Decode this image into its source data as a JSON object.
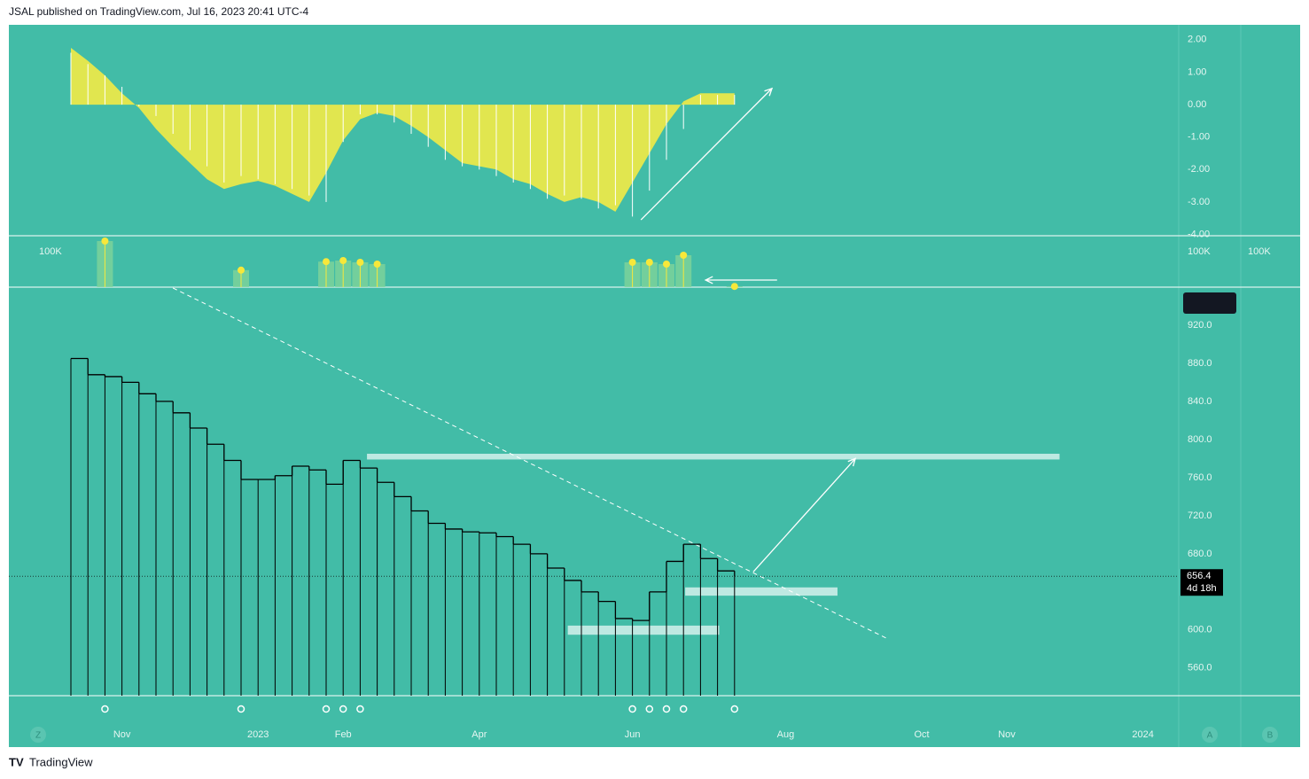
{
  "header": "JSAL published on TradingView.com, Jul 16, 2023 20:41 UTC-4",
  "footer": "TradingView",
  "buttons": [
    "Z",
    "A",
    "B"
  ],
  "chart_data": [
    {
      "type": "area",
      "x": [
        0,
        1,
        2,
        3,
        4,
        5,
        6,
        7,
        8,
        9,
        10,
        11,
        12,
        13,
        14,
        15,
        16,
        17,
        18,
        19,
        20,
        21,
        22,
        23,
        24,
        25,
        26,
        27,
        28,
        29,
        30,
        31,
        32,
        33,
        34,
        35,
        36,
        37,
        38,
        39
      ],
      "series": [
        {
          "color": "#e1e64f",
          "values": [
            1.75,
            1.35,
            0.9,
            0.35,
            -0.1,
            -0.75,
            -1.3,
            -1.8,
            -2.3,
            -2.6,
            -2.45,
            -2.35,
            -2.5,
            -2.75,
            -3.0,
            -2.1,
            -1.1,
            -0.45,
            -0.25,
            -0.35,
            -0.65,
            -1.0,
            -1.4,
            -1.8,
            -1.9,
            -2.0,
            -2.3,
            -2.45,
            -2.75,
            -3.0,
            -2.85,
            -3.0,
            -3.3,
            -2.4,
            -1.5,
            -0.6,
            0.1,
            0.35,
            0.35,
            0.35
          ]
        }
      ],
      "histogram": {
        "color": "#ffffff",
        "values": [
          1.6,
          1.25,
          0.9,
          0.55,
          -0.05,
          -0.35,
          -0.9,
          -1.4,
          -1.9,
          -2.4,
          -2.2,
          -2.3,
          -2.45,
          -2.6,
          -2.8,
          -3.0,
          -1.15,
          -0.3,
          -0.3,
          -0.55,
          -0.9,
          -1.3,
          -1.7,
          -1.9,
          -2.0,
          -2.2,
          -2.4,
          -2.6,
          -2.9,
          -2.8,
          -2.9,
          -3.2,
          -3.1,
          -3.45,
          -2.65,
          -1.7,
          -0.75,
          0.3,
          0.3,
          0.3
        ]
      },
      "ylim": [
        -4.04,
        2.46
      ],
      "yticks": [
        {
          "value": 2,
          "label": "2.00"
        },
        {
          "value": 1,
          "label": "1.00"
        },
        {
          "value": 0,
          "label": "0.00"
        },
        {
          "value": -1,
          "label": "-1.00"
        },
        {
          "value": -2,
          "label": "-2.00"
        },
        {
          "value": -3,
          "label": "-3.00"
        },
        {
          "value": -4,
          "label": "-4.00"
        }
      ],
      "arrow": {
        "x": [
          33.5,
          41.2
        ],
        "y": [
          -3.55,
          0.5
        ]
      }
    },
    {
      "type": "bar",
      "x": [
        2,
        10,
        15,
        16,
        17,
        18,
        33,
        34,
        35,
        36,
        39
      ],
      "values": [
        130000,
        48000,
        72000,
        75000,
        70000,
        65000,
        70000,
        70000,
        65000,
        90000,
        2000
      ],
      "color": "#7fd39a",
      "dot_color": "#f7e83a",
      "ylim": [
        0,
        145000
      ],
      "yticks": [
        {
          "value": 100000,
          "label": "100K"
        }
      ],
      "arrow": {
        "x": [
          41.5,
          37.3
        ],
        "y": [
          20000,
          20000
        ]
      }
    },
    {
      "type": "line",
      "x": [
        0,
        1,
        2,
        3,
        4,
        5,
        6,
        7,
        8,
        9,
        10,
        11,
        12,
        13,
        14,
        15,
        16,
        17,
        18,
        19,
        20,
        21,
        22,
        23,
        24,
        25,
        26,
        27,
        28,
        29,
        30,
        31,
        32,
        33,
        34,
        35,
        36,
        37,
        38,
        39
      ],
      "values": [
        885,
        868,
        866,
        860,
        848,
        840,
        828,
        812,
        795,
        778,
        758,
        758,
        762,
        772,
        768,
        753,
        778,
        770,
        755,
        740,
        725,
        712,
        706,
        703,
        702,
        698,
        690,
        680,
        665,
        652,
        640,
        630,
        612,
        610,
        640,
        672,
        690,
        675,
        662,
        656.4
      ],
      "color": "#000000",
      "xlim": [
        -3.646,
        65.104
      ],
      "xticks": [
        {
          "value": 3,
          "label": "Nov"
        },
        {
          "value": 11,
          "label": "2023"
        },
        {
          "value": 16,
          "label": "Feb"
        },
        {
          "value": 24,
          "label": "Apr"
        },
        {
          "value": 33,
          "label": "Jun"
        },
        {
          "value": 42,
          "label": "Aug"
        },
        {
          "value": 50,
          "label": "Oct"
        },
        {
          "value": 55,
          "label": "Nov"
        },
        {
          "value": 63,
          "label": "2024"
        }
      ],
      "ylim": [
        531,
        959
      ],
      "yticks": [
        {
          "value": 560,
          "label": "560.0"
        },
        {
          "value": 600,
          "label": "600.0"
        },
        {
          "value": 640,
          "label": "640.0"
        },
        {
          "value": 680,
          "label": "680.0"
        },
        {
          "value": 720,
          "label": "720.0"
        },
        {
          "value": 760,
          "label": "760.0"
        },
        {
          "value": 800,
          "label": "800.0"
        },
        {
          "value": 840,
          "label": "840.0"
        },
        {
          "value": 880,
          "label": "880.0"
        },
        {
          "value": 920,
          "label": "920.0"
        }
      ],
      "last_price": 656.4,
      "countdown": "4d 18h",
      "zones": [
        {
          "x": [
            17.4,
            58.1
          ],
          "y": [
            779,
            785
          ]
        },
        {
          "x": [
            36.1,
            45.05
          ],
          "y": [
            636,
            644.7
          ]
        },
        {
          "x": [
            29.2,
            38.1
          ],
          "y": [
            595,
            604.6
          ]
        }
      ],
      "trendline": {
        "x": [
          6,
          47.9
        ],
        "y": [
          959,
          591.6
        ]
      },
      "arrow": {
        "x": [
          40.1,
          46.1
        ],
        "y": [
          661,
          780
        ]
      },
      "signals": [
        2,
        10,
        15,
        16,
        17,
        33,
        34,
        35,
        36,
        39
      ]
    }
  ]
}
